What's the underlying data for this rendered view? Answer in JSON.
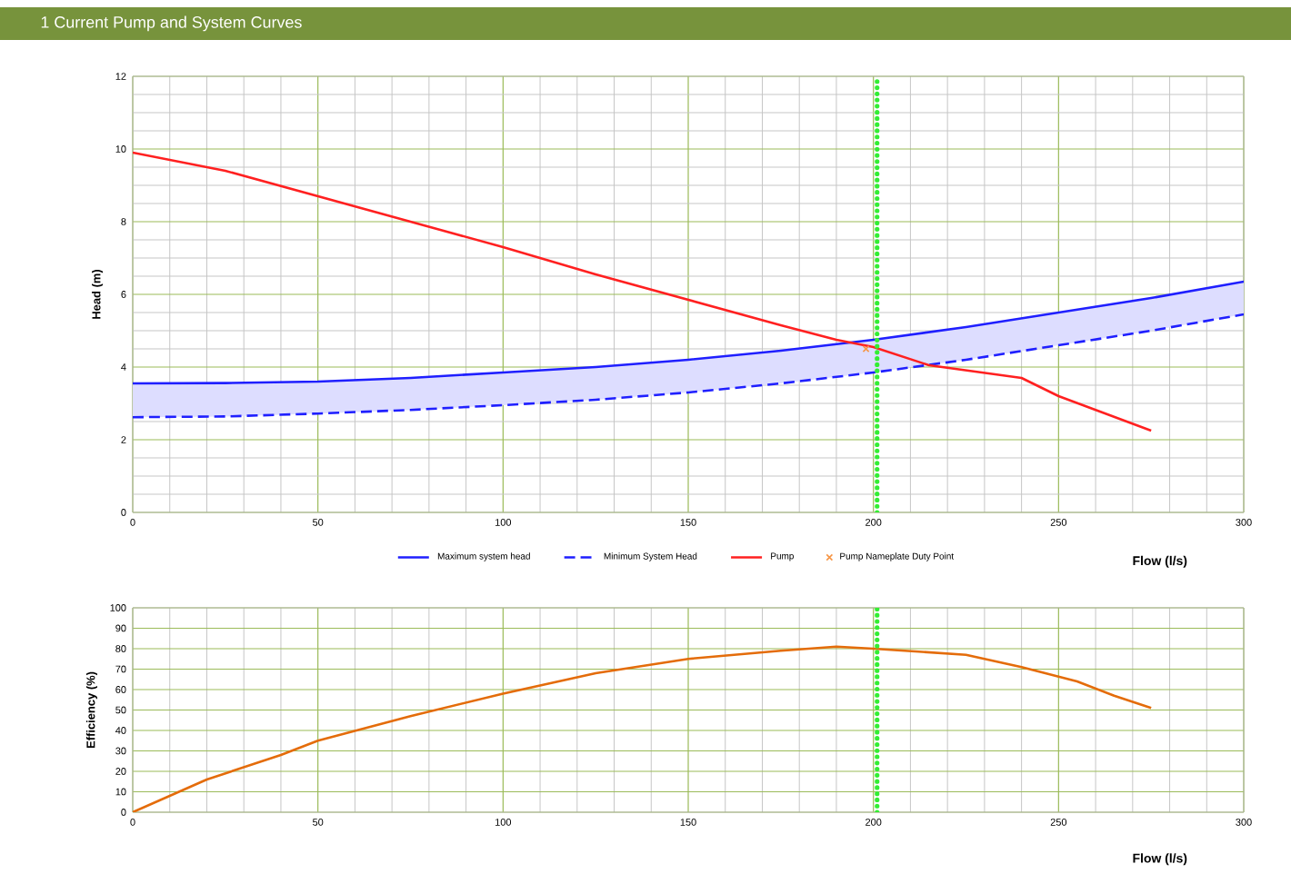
{
  "chart_data": [
    {
      "type": "line",
      "title": "1  Current Pump and System Curves",
      "xlabel": "Flow (l/s)",
      "ylabel": "Head (m)",
      "xlim": [
        0,
        300
      ],
      "ylim": [
        0,
        12
      ],
      "xticks": [
        0,
        50,
        100,
        150,
        200,
        250,
        300
      ],
      "yticks": [
        0,
        2,
        4,
        6,
        8,
        10,
        12
      ],
      "grid": true,
      "legend": "bottom",
      "series": [
        {
          "name": "Maximum system head",
          "color": "#1f1fff",
          "x": [
            0,
            25,
            50,
            75,
            100,
            125,
            150,
            175,
            200,
            225,
            250,
            275,
            300
          ],
          "values": [
            3.55,
            3.56,
            3.6,
            3.7,
            3.85,
            4.0,
            4.2,
            4.45,
            4.75,
            5.1,
            5.5,
            5.9,
            6.35
          ],
          "upper": [
            3.55,
            3.56,
            3.6,
            3.7,
            3.85,
            4.0,
            4.2,
            4.45,
            4.75,
            5.1,
            5.5,
            5.9,
            6.35
          ],
          "lower": [
            2.62,
            2.64,
            2.72,
            2.82,
            2.95,
            3.1,
            3.3,
            3.55,
            3.85,
            4.2,
            4.6,
            5.0,
            5.45
          ]
        },
        {
          "name": "Minimum System Head",
          "color": "#1f1fff",
          "line_style": "dashed",
          "x": [
            0,
            25,
            50,
            75,
            100,
            125,
            150,
            175,
            200,
            225,
            250,
            275,
            300
          ],
          "values": [
            2.62,
            2.64,
            2.72,
            2.82,
            2.95,
            3.1,
            3.3,
            3.55,
            3.85,
            4.2,
            4.6,
            5.0,
            5.45
          ]
        },
        {
          "name": "Pump",
          "color": "#ff2020",
          "x": [
            0,
            25,
            50,
            75,
            100,
            125,
            150,
            175,
            190,
            200,
            215,
            240,
            250,
            275
          ],
          "values": [
            9.9,
            9.4,
            8.7,
            8.0,
            7.3,
            6.55,
            5.85,
            5.15,
            4.75,
            4.55,
            4.05,
            3.7,
            3.2,
            2.25
          ]
        },
        {
          "name": "Pump Nameplate Duty Point",
          "type": "scatter",
          "marker": "cross",
          "color": "#f79646",
          "x": [
            198
          ],
          "values": [
            4.5
          ]
        }
      ],
      "ref_lines": [
        {
          "axis": "x",
          "value": 201,
          "color": "#33ee33",
          "line_style": "dotted"
        }
      ]
    },
    {
      "type": "line",
      "xlabel": "Flow (l/s)",
      "ylabel": "Efficiency  (%)",
      "xlim": [
        0,
        300
      ],
      "ylim": [
        0,
        100
      ],
      "xticks": [
        0,
        50,
        100,
        150,
        200,
        250,
        300
      ],
      "yticks": [
        0,
        10,
        20,
        30,
        40,
        50,
        60,
        70,
        80,
        90,
        100
      ],
      "grid": true,
      "series": [
        {
          "color": "#e46c0a",
          "x": [
            0,
            10,
            20,
            30,
            40,
            50,
            75,
            100,
            125,
            150,
            175,
            190,
            200,
            225,
            240,
            255,
            265,
            275
          ],
          "values": [
            0,
            8,
            16,
            22,
            28,
            35,
            47,
            58,
            68,
            75,
            79,
            81,
            80,
            77,
            71,
            64,
            57,
            51
          ]
        }
      ],
      "ref_lines": [
        {
          "axis": "x",
          "value": 201,
          "color": "#33ee33",
          "line_style": "dotted"
        }
      ]
    }
  ]
}
